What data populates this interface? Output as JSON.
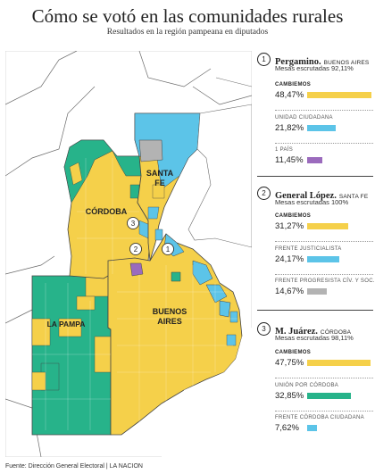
{
  "header": {
    "title": "Cómo se votó en las comunidades rurales",
    "subtitle": "Resultados en la región pampeana en diputados"
  },
  "map": {
    "labels": {
      "santa_fe": "SANTA\nFE",
      "santa_fe_l1": "SANTA",
      "santa_fe_l2": "FE",
      "cordoba": "CÓRDOBA",
      "buenos_aires_l1": "BUENOS",
      "buenos_aires_l2": "AIRES",
      "la_pampa": "LA PAMPA"
    },
    "markers": [
      "1",
      "2",
      "3"
    ],
    "colors": {
      "yellow": "#f5d04a",
      "green": "#27b38a",
      "blue": "#5cc4e8",
      "gray": "#b3b3b3",
      "purple": "#9b6bbd",
      "land": "#ffffff",
      "water": "#ffffff",
      "border": "#555555"
    }
  },
  "source": "Fuente: Dirección General Electoral | LA NACION",
  "regions": [
    {
      "number": "1",
      "name": "Pergamino.",
      "province": "BUENOS AIRES",
      "mesas": "Mesas escrutadas 92,11%",
      "parties": [
        {
          "label": "CAMBIEMOS",
          "pct": "48,47%",
          "value": 48.47,
          "color": "#f5d04a",
          "winner": true
        },
        {
          "label": "UNIDAD CIUDADANA",
          "pct": "21,82%",
          "value": 21.82,
          "color": "#5cc4e8",
          "winner": false
        },
        {
          "label": "1 PAÍS",
          "pct": "11,45%",
          "value": 11.45,
          "color": "#9b6bbd",
          "winner": false
        }
      ]
    },
    {
      "number": "2",
      "name": "General López.",
      "province": "SANTA FE",
      "mesas": "Mesas escrutadas 100%",
      "parties": [
        {
          "label": "CAMBIEMOS",
          "pct": "31,27%",
          "value": 31.27,
          "color": "#f5d04a",
          "winner": true
        },
        {
          "label": "FRENTE JUSTICIALISTA",
          "pct": "24,17%",
          "value": 24.17,
          "color": "#5cc4e8",
          "winner": false
        },
        {
          "label": "FRENTE PROGRESISTA CÍV. Y SOC.",
          "pct": "14,67%",
          "value": 14.67,
          "color": "#b3b3b3",
          "winner": false
        }
      ]
    },
    {
      "number": "3",
      "name": "M. Juárez.",
      "province": "CÓRDOBA",
      "mesas": "Mesas escrutadas 98,11%",
      "parties": [
        {
          "label": "CAMBIEMOS",
          "pct": "47,75%",
          "value": 47.75,
          "color": "#f5d04a",
          "winner": true
        },
        {
          "label": "UNIÓN POR CÓRDOBA",
          "pct": "32,85%",
          "value": 32.85,
          "color": "#27b38a",
          "winner": false
        },
        {
          "label": "FRENTE CÓRDOBA CIUDADANA",
          "pct": "7,62%",
          "value": 7.62,
          "color": "#5cc4e8",
          "winner": false
        }
      ]
    }
  ]
}
